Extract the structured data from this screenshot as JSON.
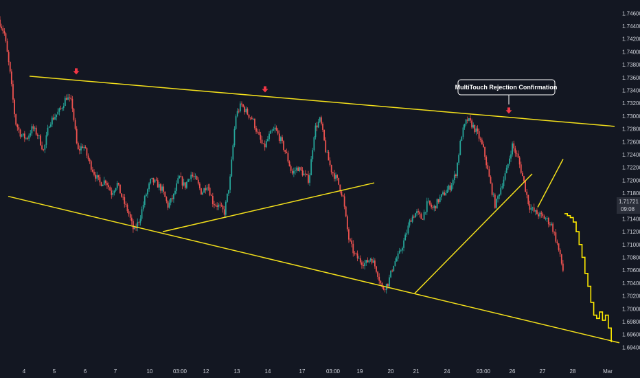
{
  "colors": {
    "background": "#131722",
    "up": "#26a69a",
    "down": "#ef5350",
    "trendline": "#f5e11b",
    "projection": "#ffeb00",
    "axis_text": "#d1d4dc",
    "arrow": "#f23645"
  },
  "price_axis": {
    "labels": [
      "1.74600",
      "1.74400",
      "1.74200",
      "1.74000",
      "1.73800",
      "1.73600",
      "1.73400",
      "1.73200",
      "1.73000",
      "1.72800",
      "1.72600",
      "1.72400",
      "1.72200",
      "1.72000",
      "1.71800",
      "1.71400",
      "1.71200",
      "1.71000",
      "1.70800",
      "1.70600",
      "1.70400",
      "1.70200",
      "1.70000",
      "1.69800",
      "1.69600",
      "1.69400"
    ],
    "current_price": "1.71721",
    "countdown": "09:08"
  },
  "time_axis": {
    "labels": [
      "4",
      "5",
      "6",
      "7",
      "10",
      "03:00",
      "12",
      "13",
      "14",
      "17",
      "03:00",
      "19",
      "20",
      "21",
      "24",
      "03:00",
      "26",
      "27",
      "28",
      "Mar"
    ]
  },
  "annotation": {
    "text": "MultiTouch Rejection Confirmation"
  },
  "chart_data": {
    "type": "candlestick",
    "title": "",
    "ylim": [
      1.6935,
      1.747
    ],
    "y_ticks": [
      1.746,
      1.744,
      1.742,
      1.74,
      1.738,
      1.736,
      1.734,
      1.732,
      1.73,
      1.728,
      1.726,
      1.724,
      1.722,
      1.72,
      1.718,
      1.714,
      1.712,
      1.71,
      1.708,
      1.706,
      1.704,
      1.702,
      1.7,
      1.698,
      1.696,
      1.694
    ],
    "x_index_range": [
      0,
      200
    ],
    "price_path": [
      [
        0,
        1.745
      ],
      [
        2,
        1.743
      ],
      [
        4,
        1.737
      ],
      [
        6,
        1.729
      ],
      [
        8,
        1.727
      ],
      [
        10,
        1.7265
      ],
      [
        12,
        1.7282
      ],
      [
        14,
        1.727
      ],
      [
        16,
        1.7245
      ],
      [
        18,
        1.729
      ],
      [
        20,
        1.73
      ],
      [
        22,
        1.731
      ],
      [
        24,
        1.733
      ],
      [
        26,
        1.732
      ],
      [
        28,
        1.7245
      ],
      [
        30,
        1.7255
      ],
      [
        32,
        1.723
      ],
      [
        34,
        1.721
      ],
      [
        36,
        1.7195
      ],
      [
        38,
        1.72
      ],
      [
        40,
        1.718
      ],
      [
        42,
        1.7195
      ],
      [
        44,
        1.717
      ],
      [
        46,
        1.715
      ],
      [
        48,
        1.712
      ],
      [
        50,
        1.714
      ],
      [
        52,
        1.7175
      ],
      [
        54,
        1.72
      ],
      [
        56,
        1.7195
      ],
      [
        58,
        1.7185
      ],
      [
        60,
        1.716
      ],
      [
        62,
        1.7175
      ],
      [
        64,
        1.7205
      ],
      [
        66,
        1.719
      ],
      [
        68,
        1.721
      ],
      [
        70,
        1.72
      ],
      [
        72,
        1.718
      ],
      [
        74,
        1.7195
      ],
      [
        76,
        1.7165
      ],
      [
        78,
        1.716
      ],
      [
        80,
        1.715
      ],
      [
        82,
        1.72
      ],
      [
        84,
        1.73
      ],
      [
        86,
        1.7318
      ],
      [
        88,
        1.7305
      ],
      [
        90,
        1.7295
      ],
      [
        92,
        1.727
      ],
      [
        94,
        1.725
      ],
      [
        96,
        1.727
      ],
      [
        98,
        1.728
      ],
      [
        100,
        1.7262
      ],
      [
        102,
        1.724
      ],
      [
        104,
        1.721
      ],
      [
        106,
        1.722
      ],
      [
        108,
        1.721
      ],
      [
        110,
        1.72
      ],
      [
        112,
        1.728
      ],
      [
        114,
        1.7295
      ],
      [
        116,
        1.7245
      ],
      [
        118,
        1.7215
      ],
      [
        120,
        1.72
      ],
      [
        122,
        1.7175
      ],
      [
        124,
        1.711
      ],
      [
        126,
        1.7085
      ],
      [
        128,
        1.7075
      ],
      [
        130,
        1.707
      ],
      [
        132,
        1.708
      ],
      [
        134,
        1.706
      ],
      [
        136,
        1.703
      ],
      [
        138,
        1.704
      ],
      [
        140,
        1.707
      ],
      [
        142,
        1.7085
      ],
      [
        144,
        1.711
      ],
      [
        146,
        1.714
      ],
      [
        148,
        1.715
      ],
      [
        150,
        1.714
      ],
      [
        152,
        1.7165
      ],
      [
        154,
        1.7155
      ],
      [
        156,
        1.717
      ],
      [
        158,
        1.718
      ],
      [
        160,
        1.719
      ],
      [
        162,
        1.721
      ],
      [
        164,
        1.727
      ],
      [
        166,
        1.7295
      ],
      [
        168,
        1.7285
      ],
      [
        170,
        1.727
      ],
      [
        172,
        1.7245
      ],
      [
        174,
        1.72
      ],
      [
        176,
        1.716
      ],
      [
        178,
        1.719
      ],
      [
        180,
        1.7215
      ],
      [
        182,
        1.7255
      ],
      [
        184,
        1.7235
      ],
      [
        186,
        1.72
      ],
      [
        188,
        1.716
      ],
      [
        190,
        1.715
      ],
      [
        192,
        1.7145
      ],
      [
        194,
        1.714
      ],
      [
        196,
        1.713
      ],
      [
        198,
        1.71
      ],
      [
        200,
        1.706
      ]
    ],
    "projection": [
      [
        0,
        1.7148
      ],
      [
        3,
        1.7145
      ],
      [
        6,
        1.7142
      ],
      [
        9,
        1.7135
      ],
      [
        12,
        1.712
      ],
      [
        15,
        1.71
      ],
      [
        18,
        1.708
      ],
      [
        21,
        1.7055
      ],
      [
        24,
        1.7035
      ],
      [
        27,
        1.701
      ],
      [
        30,
        1.699
      ],
      [
        33,
        1.6985
      ],
      [
        36,
        1.6995
      ],
      [
        39,
        1.6982
      ],
      [
        42,
        1.699
      ],
      [
        45,
        1.697
      ],
      [
        48,
        1.6948
      ]
    ],
    "trendlines": [
      {
        "name": "upper-resistance",
        "from": [
          1.7362
        ],
        "to": [
          1.7284
        ]
      },
      {
        "name": "lower-support",
        "from": [
          1.7175
        ],
        "to": [
          1.6947
        ]
      },
      {
        "name": "inner-support-1",
        "from": [
          1.712
        ],
        "to": [
          1.7196
        ]
      },
      {
        "name": "inner-support-2",
        "from": [
          1.7024
        ],
        "to": [
          1.721
        ]
      },
      {
        "name": "inner-support-3",
        "from": [
          1.7158
        ],
        "to": [
          1.7233
        ]
      }
    ],
    "markers": [
      {
        "type": "down-arrow",
        "label": ""
      },
      {
        "type": "down-arrow",
        "label": ""
      },
      {
        "type": "down-arrow",
        "label": "MultiTouch Rejection Confirmation"
      }
    ]
  }
}
